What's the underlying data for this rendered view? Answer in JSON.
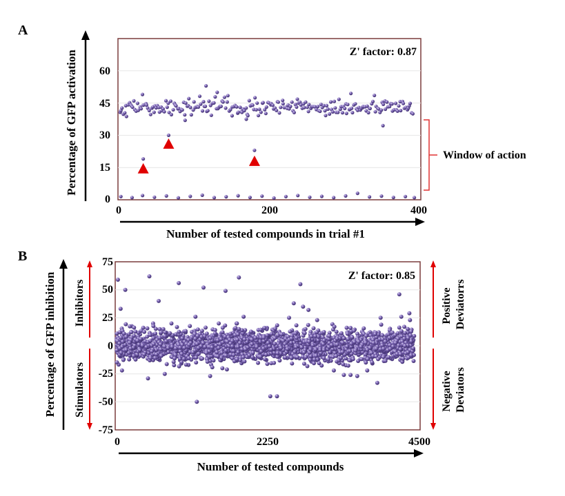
{
  "colors": {
    "point": "#6a55a0",
    "point_highlight": "#c9bfe6",
    "frame": "#7a3b3b",
    "arrow_red": "#e00000",
    "bracket": "#e03030",
    "grid": "#e6e6e6"
  },
  "chart_data": [
    {
      "panel_label": "A",
      "type": "scatter",
      "ylabel": "Percentage of GFP activation",
      "xlabel": "Number of tested compounds in trial #1",
      "xlim": [
        0,
        400
      ],
      "ylim": [
        0,
        75
      ],
      "x_ticks": [
        "0",
        "200",
        "400"
      ],
      "y_ticks": [
        "0",
        "15",
        "30",
        "45",
        "60"
      ],
      "annotation": "Z' factor: 0.87",
      "window_label": "Window of action",
      "window_range": [
        0,
        37
      ],
      "main_band": {
        "count": 250,
        "center": 43,
        "spread": 2.8
      },
      "baseline_x": [
        2,
        17,
        31,
        47,
        63,
        79,
        95,
        111,
        127,
        143,
        159,
        175,
        191,
        207,
        223,
        239,
        255,
        271,
        287,
        303,
        319,
        335,
        351,
        367,
        383,
        395
      ],
      "baseline_y": [
        1.5,
        1.0,
        2.0,
        1.2,
        1.8,
        0.9,
        1.6,
        2.1,
        1.0,
        1.4,
        1.9,
        1.1,
        1.7,
        0.8,
        1.5,
        2.0,
        1.2,
        1.6,
        1.0,
        1.8,
        3.0,
        1.3,
        1.7,
        1.1,
        1.5,
        1.0
      ],
      "outliers": [
        {
          "x": 32,
          "y": 19
        },
        {
          "x": 66,
          "y": 30
        },
        {
          "x": 181,
          "y": 23
        },
        {
          "x": 116,
          "y": 53
        },
        {
          "x": 131,
          "y": 50
        },
        {
          "x": 310,
          "y": 49.5
        },
        {
          "x": 353,
          "y": 34.5
        },
        {
          "x": 88,
          "y": 37
        },
        {
          "x": 170,
          "y": 37.5
        }
      ],
      "triangles": [
        {
          "x": 32,
          "y": 14.5
        },
        {
          "x": 66,
          "y": 26
        },
        {
          "x": 181,
          "y": 18
        }
      ]
    },
    {
      "panel_label": "B",
      "type": "scatter",
      "ylabel": "Percentage of GFP inhibition",
      "xlabel": "Number of tested compounds",
      "xlim": [
        0,
        4500
      ],
      "ylim": [
        -75,
        75
      ],
      "x_ticks": [
        "0",
        "2250",
        "4500"
      ],
      "y_ticks": [
        "75",
        "50",
        "25",
        "0",
        "-25",
        "-50",
        "-75"
      ],
      "annotation": "Z' factor: 0.85",
      "left_labels": {
        "top": "Inhibitors",
        "bottom": "Stimulators"
      },
      "right_labels": {
        "top": "Positive Deviatorrs",
        "bottom": "Negative Deviators"
      },
      "main_band": {
        "count": 2600,
        "center": 0,
        "spread": 6.5
      },
      "outliers": [
        {
          "x": 20,
          "y": 59
        },
        {
          "x": 60,
          "y": 33
        },
        {
          "x": 130,
          "y": 50
        },
        {
          "x": 490,
          "y": 62
        },
        {
          "x": 630,
          "y": 40
        },
        {
          "x": 930,
          "y": 56
        },
        {
          "x": 1180,
          "y": 26
        },
        {
          "x": 1300,
          "y": 52
        },
        {
          "x": 1630,
          "y": 49
        },
        {
          "x": 1800,
          "y": 20
        },
        {
          "x": 1830,
          "y": 15
        },
        {
          "x": 1830,
          "y": 61
        },
        {
          "x": 1900,
          "y": 26
        },
        {
          "x": 2650,
          "y": 38
        },
        {
          "x": 2750,
          "y": 55
        },
        {
          "x": 2790,
          "y": 35
        },
        {
          "x": 2870,
          "y": 32
        },
        {
          "x": 2580,
          "y": 25
        },
        {
          "x": 3000,
          "y": 23
        },
        {
          "x": 3500,
          "y": 16
        },
        {
          "x": 3950,
          "y": 25
        },
        {
          "x": 4230,
          "y": 46
        },
        {
          "x": 4260,
          "y": 26
        },
        {
          "x": 4380,
          "y": 29
        },
        {
          "x": 4390,
          "y": 23
        },
        {
          "x": 1200,
          "y": -50
        },
        {
          "x": 2300,
          "y": -45
        },
        {
          "x": 2400,
          "y": -45
        },
        {
          "x": 3400,
          "y": -26
        },
        {
          "x": 3500,
          "y": -26
        },
        {
          "x": 3600,
          "y": -27
        },
        {
          "x": 3900,
          "y": -33
        },
        {
          "x": 470,
          "y": -29
        },
        {
          "x": 80,
          "y": -22
        },
        {
          "x": 3250,
          "y": -22
        },
        {
          "x": 720,
          "y": -25
        },
        {
          "x": 1400,
          "y": -27
        },
        {
          "x": 3100,
          "y": -11
        },
        {
          "x": 3750,
          "y": -22
        },
        {
          "x": 1650,
          "y": -21
        }
      ]
    }
  ]
}
